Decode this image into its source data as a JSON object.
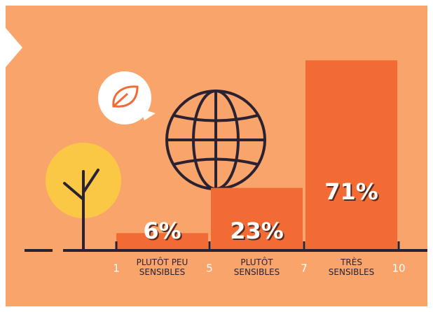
{
  "chart_data": {
    "type": "bar",
    "categories": [
      "PLUTÔT PEU SENSIBLES",
      "PLUTÔT SENSIBLES",
      "TRÈS SENSIBLES"
    ],
    "values": [
      6,
      23,
      71
    ],
    "value_labels": [
      "6%",
      "23%",
      "71%"
    ],
    "color": "#f26b35",
    "boundaries": [
      1,
      5,
      7,
      10
    ]
  }
}
